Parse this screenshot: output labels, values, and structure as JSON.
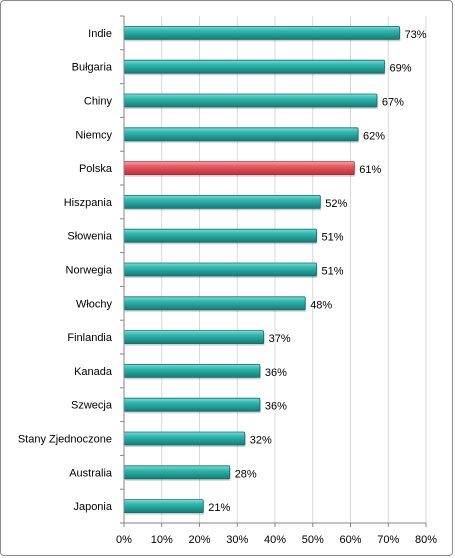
{
  "chart_data": {
    "type": "bar",
    "orientation": "horizontal",
    "categories": [
      "Indie",
      "Bułgaria",
      "Chiny",
      "Niemcy",
      "Polska",
      "Hiszpania",
      "Słowenia",
      "Norwegia",
      "Włochy",
      "Finlandia",
      "Kanada",
      "Szwecja",
      "Stany Zjednoczone",
      "Australia",
      "Japonia"
    ],
    "values": [
      73,
      69,
      67,
      62,
      61,
      52,
      51,
      51,
      48,
      37,
      36,
      36,
      32,
      28,
      21
    ],
    "value_labels": [
      "73%",
      "69%",
      "67%",
      "62%",
      "61%",
      "52%",
      "51%",
      "51%",
      "48%",
      "37%",
      "36%",
      "36%",
      "32%",
      "28%",
      "21%"
    ],
    "highlight": "Polska",
    "xlim": [
      0,
      80
    ],
    "x_ticks": [
      0,
      10,
      20,
      30,
      40,
      50,
      60,
      70,
      80
    ],
    "x_tick_labels": [
      "0%",
      "10%",
      "20%",
      "30%",
      "40%",
      "50%",
      "60%",
      "70%",
      "80%"
    ],
    "grid": true,
    "colors": {
      "bar": "#21a8a0",
      "bar_highlight": "#e8545c",
      "grid": "#d9d9d9",
      "axis": "#868686"
    }
  }
}
